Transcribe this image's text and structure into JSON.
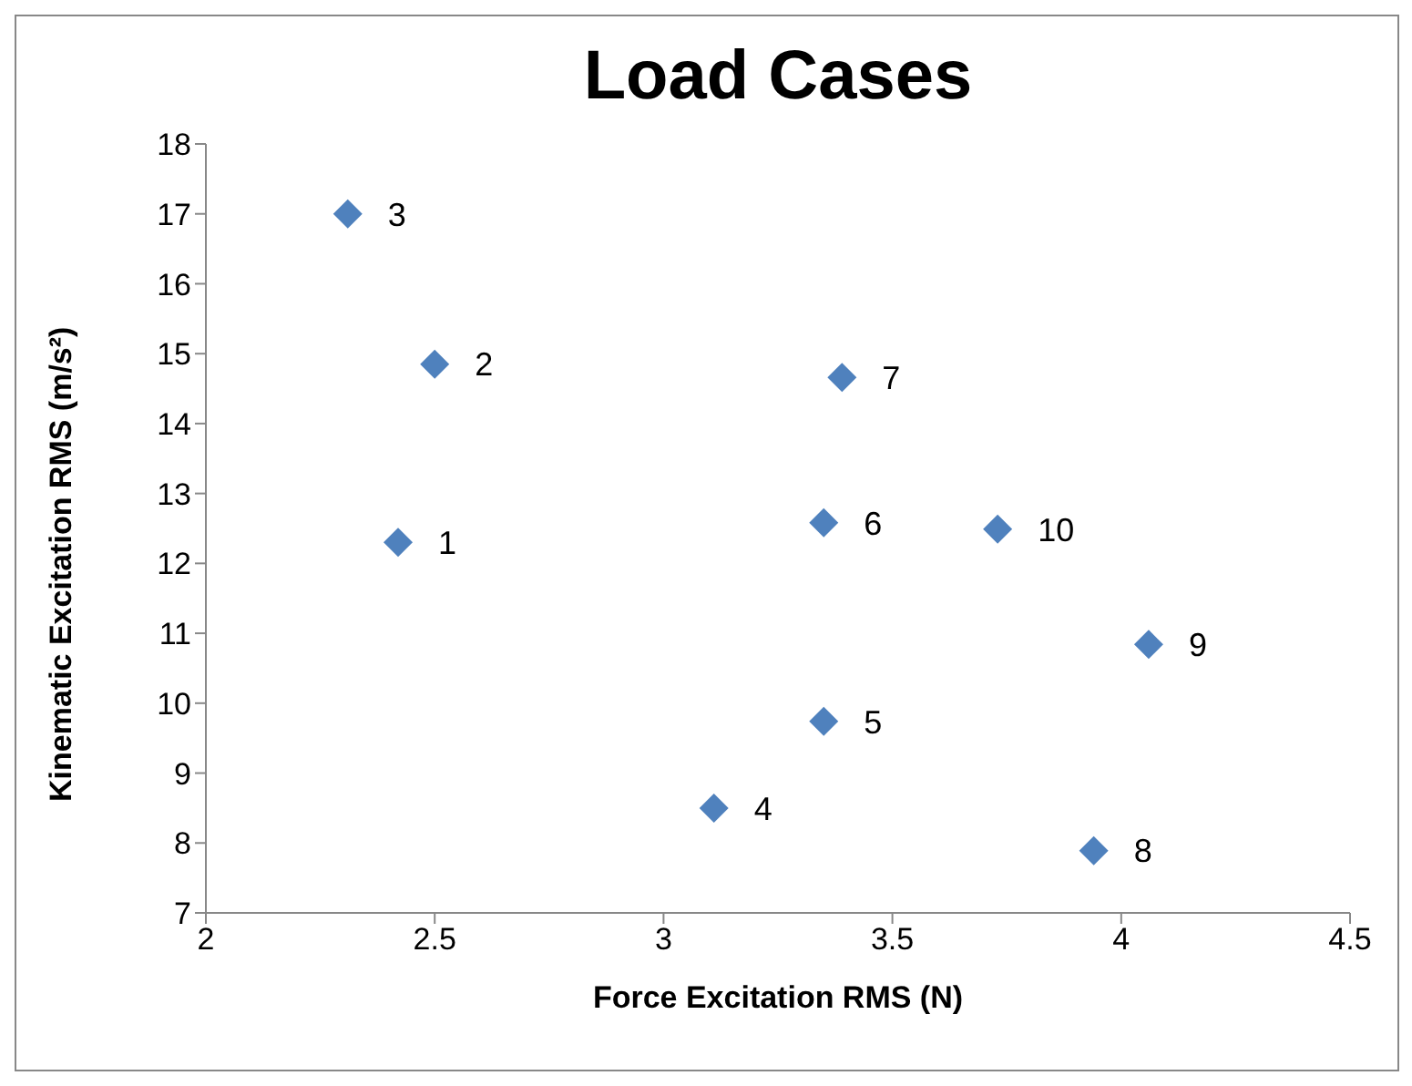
{
  "chart_data": {
    "type": "scatter",
    "title": "Load Cases",
    "xlabel": "Force Excitation RMS (N)",
    "ylabel": "Kinematic Excitation RMS (m/s²)",
    "x": [
      2.42,
      2.5,
      2.31,
      3.11,
      3.35,
      3.35,
      3.39,
      3.94,
      4.06,
      3.73
    ],
    "series": [
      {
        "color": "#4f81bd",
        "values": [
          12.3,
          14.85,
          17.0,
          8.5,
          9.74,
          12.58,
          14.66,
          7.89,
          10.84,
          12.49
        ]
      }
    ],
    "xlim": [
      2,
      4.5
    ],
    "xticks": [
      2,
      2.5,
      3,
      3.5,
      4,
      4.5
    ],
    "ylim": [
      7,
      18
    ],
    "yticks": [
      7,
      8,
      9,
      10,
      11,
      12,
      13,
      14,
      15,
      16,
      17,
      18
    ],
    "grid": false,
    "marker": "diamond",
    "annotations": [
      {
        "text": "1",
        "x": 2.42,
        "y": 12.3
      },
      {
        "text": "2",
        "x": 2.5,
        "y": 14.85
      },
      {
        "text": "3",
        "x": 2.31,
        "y": 17.0
      },
      {
        "text": "4",
        "x": 3.11,
        "y": 8.5
      },
      {
        "text": "5",
        "x": 3.35,
        "y": 9.74
      },
      {
        "text": "6",
        "x": 3.35,
        "y": 12.58
      },
      {
        "text": "7",
        "x": 3.39,
        "y": 14.66
      },
      {
        "text": "8",
        "x": 3.94,
        "y": 7.89
      },
      {
        "text": "9",
        "x": 4.06,
        "y": 10.84
      },
      {
        "text": "10",
        "x": 3.73,
        "y": 12.49
      }
    ]
  }
}
